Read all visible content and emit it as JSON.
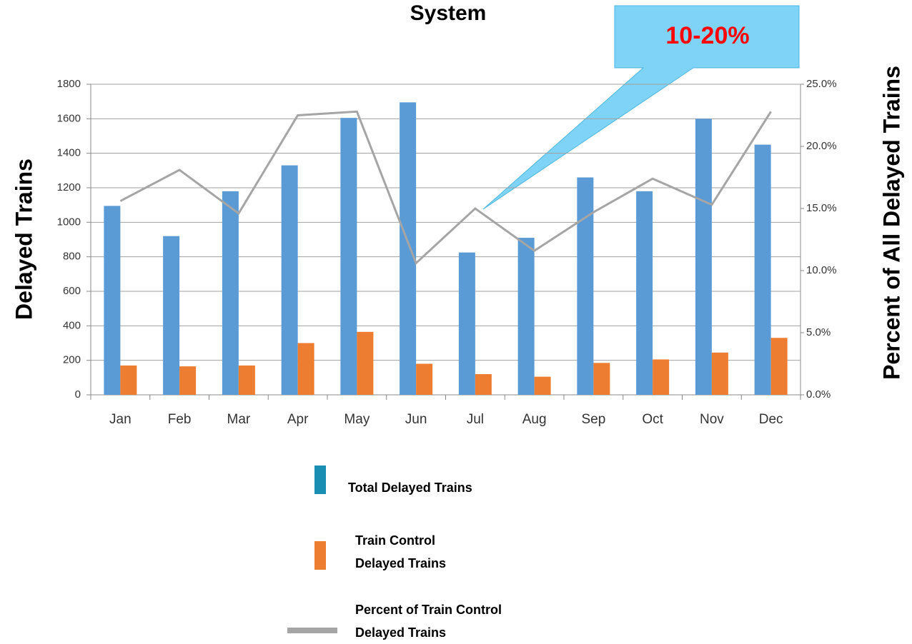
{
  "chart_data": {
    "type": "bar_line",
    "title": "System",
    "ylabel": "Delayed Trains",
    "y2label": "Percent of All Delayed Trains",
    "annotation": "10-20%",
    "categories": [
      "Jan",
      "Feb",
      "Mar",
      "Apr",
      "May",
      "Jun",
      "Jul",
      "Aug",
      "Sep",
      "Oct",
      "Nov",
      "Dec"
    ],
    "series": [
      {
        "name": "Total Delayed Trains",
        "type": "bar",
        "color": "#5b9bd5",
        "legend_color": "#1a8fb3",
        "values": [
          1095,
          920,
          1180,
          1330,
          1605,
          1695,
          825,
          910,
          1260,
          1180,
          1600,
          1450
        ]
      },
      {
        "name": "Train Control Delayed Trains",
        "type": "bar",
        "color": "#ed7d31",
        "values": [
          170,
          165,
          170,
          300,
          365,
          180,
          120,
          105,
          185,
          205,
          245,
          330
        ]
      },
      {
        "name": "Percent of Train Control Delayed Trains",
        "type": "line",
        "axis": "y2",
        "color": "#a5a5a5",
        "values": [
          15.6,
          18.1,
          14.6,
          22.5,
          22.8,
          10.6,
          15.0,
          11.6,
          14.7,
          17.4,
          15.3,
          22.8
        ]
      }
    ],
    "ylim": [
      0,
      1800
    ],
    "yticks": [
      0,
      200,
      400,
      600,
      800,
      1000,
      1200,
      1400,
      1600,
      1800
    ],
    "y2lim": [
      0,
      25
    ],
    "y2ticks": [
      {
        "value": 0,
        "label": "0.0%"
      },
      {
        "value": 5,
        "label": "5.0%"
      },
      {
        "value": 10,
        "label": "10.0%"
      },
      {
        "value": 15,
        "label": "15.0%"
      },
      {
        "value": 20,
        "label": "20.0%"
      },
      {
        "value": 25,
        "label": "25.0%"
      }
    ],
    "grid": true
  }
}
